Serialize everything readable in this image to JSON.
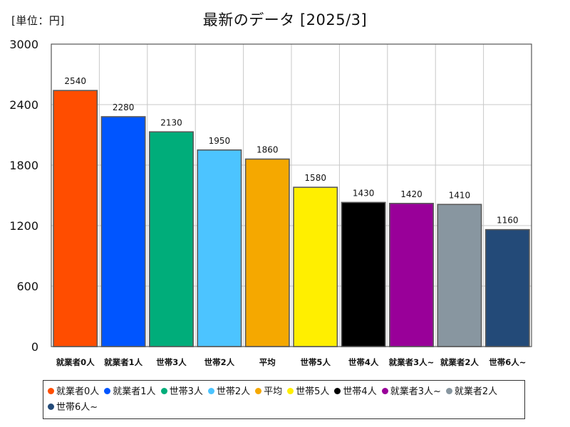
{
  "unit_label": "[単位：円]",
  "title": "最新のデータ [2025/3]",
  "chart_data": {
    "type": "bar",
    "title": "最新のデータ [2025/3]",
    "unit": "[単位：円]",
    "categories": [
      "就業者0人",
      "就業者1人",
      "世帯3人",
      "世帯2人",
      "平均",
      "世帯5人",
      "世帯4人",
      "就業者3人~",
      "就業者2人",
      "世帯6人~"
    ],
    "values": [
      2540,
      2280,
      2130,
      1950,
      1860,
      1580,
      1430,
      1420,
      1410,
      1160
    ],
    "colors": [
      "#ff4d00",
      "#0055ff",
      "#00ad7a",
      "#4cc4ff",
      "#f5a800",
      "#ffef00",
      "#000000",
      "#990099",
      "#8896a0",
      "#234a78"
    ],
    "ylim": [
      0,
      3000
    ],
    "yticks": [
      0,
      600,
      1200,
      1800,
      2400,
      3000
    ],
    "grid": true,
    "legend_position": "bottom"
  }
}
